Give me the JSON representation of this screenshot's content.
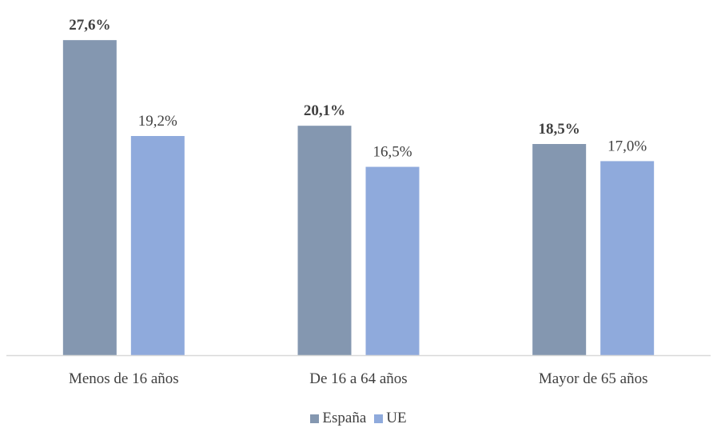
{
  "chart_data": {
    "type": "bar",
    "categories": [
      "Menos de 16 años",
      "De 16 a 64 años",
      "Mayor de 65 años"
    ],
    "series": [
      {
        "name": "España",
        "values": [
          27.6,
          20.1,
          18.5
        ],
        "value_labels": [
          "27,6%",
          "20,1%",
          "18,5%"
        ],
        "color": "#8497B0",
        "labels_bold": true
      },
      {
        "name": "UE",
        "values": [
          19.2,
          16.5,
          17.0
        ],
        "value_labels": [
          "19,2%",
          "16,5%",
          "17,0%"
        ],
        "color": "#8FAADC",
        "labels_bold": false
      }
    ],
    "ylim": [
      0,
      30
    ],
    "grid": false,
    "legend_position": "bottom",
    "axis_color": "#D9D9D9",
    "text_color": "#404040"
  }
}
